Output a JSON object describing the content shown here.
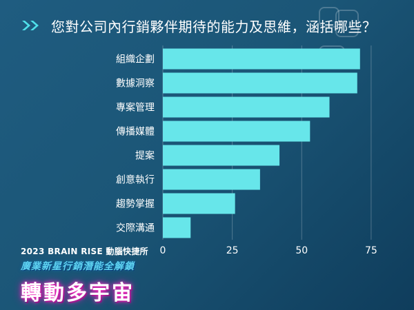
{
  "header": {
    "title": "您對公司內行銷夥伴期待的能力及思維，涵括哪些？",
    "arrow_icon": "double-chevron-right-icon",
    "arrow_color": "#4fe0ea"
  },
  "brand": {
    "line1": "2023 BRAIN RISE 動腦快捷所",
    "line2": "廣業新星行銷潛能全解鎖",
    "line3": "轉動多宇宙"
  },
  "colors": {
    "bar": "#67e6ea",
    "axis_text": "#ffffff",
    "grid": "rgba(255,255,255,0.25)"
  },
  "chart_data": {
    "type": "bar",
    "orientation": "horizontal",
    "categories": [
      "組織企劃",
      "數據洞察",
      "專案管理",
      "傳播媒體",
      "提案",
      "創意執行",
      "趨勢掌握",
      "交際溝通"
    ],
    "values": [
      71,
      70,
      60,
      53,
      42,
      35,
      26,
      10
    ],
    "xticks": [
      0,
      25,
      50,
      75
    ],
    "xlim": [
      0,
      80
    ],
    "grid": true,
    "title": "",
    "xlabel": "",
    "ylabel": ""
  }
}
